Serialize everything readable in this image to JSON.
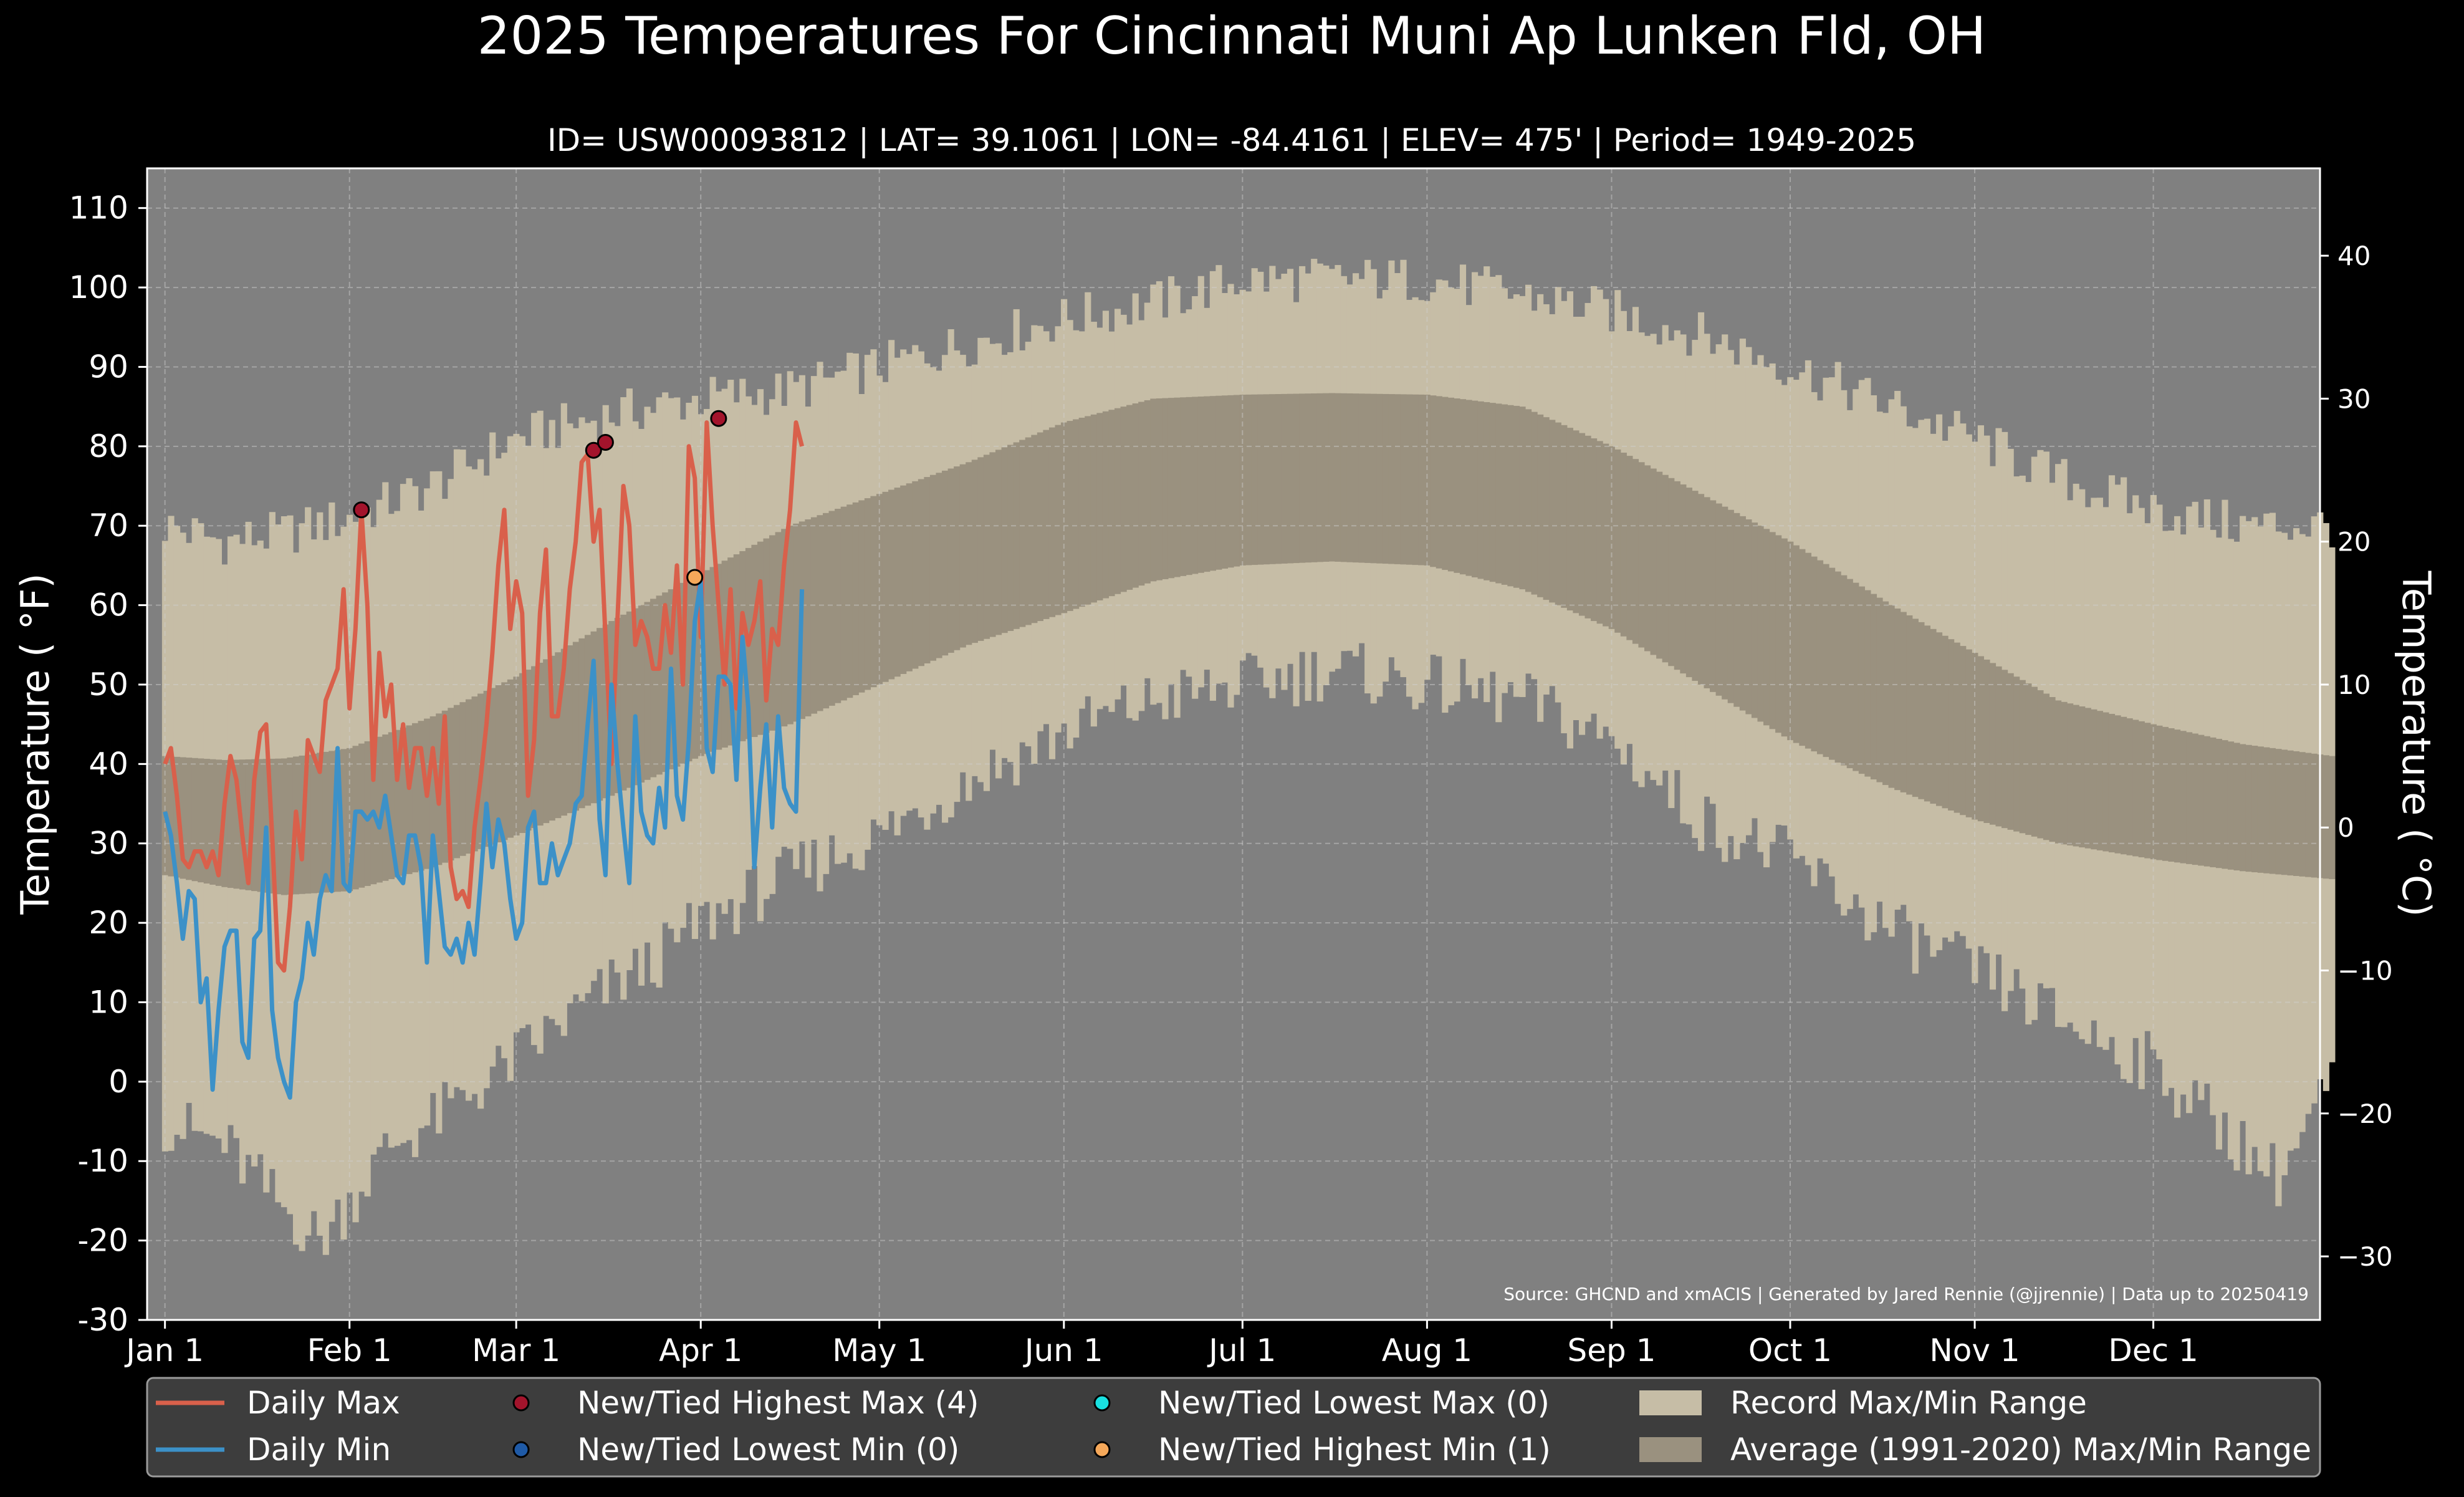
{
  "chart_data": {
    "type": "line",
    "title": "2025 Temperatures For Cincinnati Muni Ap Lunken Fld, OH",
    "subtitle": "ID= USW00093812 | LAT= 39.1061 | LON= -84.4161 | ELEV= 475' | Period= 1949-2025",
    "ylabel": "Temperature ( $^\\circ$F)",
    "ylabel_display": "Temperature ( °F)",
    "y2label_display": "Temperature ( °C)",
    "source": "Source: GHCND and xmACIS | Generated by Jared Rennie (@jjrennie) | Data up to 20250419",
    "ylim": [
      -30,
      115
    ],
    "xlim_days": [
      -3,
      362
    ],
    "y_ticks": [
      -30,
      -20,
      -10,
      0,
      10,
      20,
      30,
      40,
      50,
      60,
      70,
      80,
      90,
      100,
      110
    ],
    "y2_ticks": [
      -30,
      -20,
      -10,
      0,
      10,
      20,
      30,
      40
    ],
    "x_ticks": [
      {
        "day": 0,
        "label": "Jan 1"
      },
      {
        "day": 31,
        "label": "Feb 1"
      },
      {
        "day": 59,
        "label": "Mar 1"
      },
      {
        "day": 90,
        "label": "Apr 1"
      },
      {
        "day": 120,
        "label": "May 1"
      },
      {
        "day": 151,
        "label": "Jun 1"
      },
      {
        "day": 181,
        "label": "Jul 1"
      },
      {
        "day": 212,
        "label": "Aug 1"
      },
      {
        "day": 243,
        "label": "Sep 1"
      },
      {
        "day": 273,
        "label": "Oct 1"
      },
      {
        "day": 304,
        "label": "Nov 1"
      },
      {
        "day": 334,
        "label": "Dec 1"
      }
    ],
    "grid": true,
    "legend_position": "bottom",
    "legend": [
      {
        "label": "Daily Max",
        "kind": "line",
        "color": "#d9604b"
      },
      {
        "label": "Daily Min",
        "kind": "line",
        "color": "#3c91c8"
      },
      {
        "label": "New/Tied Highest Max (4)",
        "kind": "dot",
        "color": "#a3142c"
      },
      {
        "label": "New/Tied Lowest Min (0)",
        "kind": "dot",
        "color": "#1f5aa6"
      },
      {
        "label": "New/Tied Lowest Max (0)",
        "kind": "dot",
        "color": "#19e0e0"
      },
      {
        "label": "New/Tied Highest Min (1)",
        "kind": "dot",
        "color": "#f5a85a"
      },
      {
        "label": "Record Max/Min Range",
        "kind": "patch",
        "color": "#c6bda6"
      },
      {
        "label": "Average (1991-2020) Max/Min Range",
        "kind": "patch",
        "color": "#9a917f"
      }
    ],
    "record_max_control": [
      [
        0,
        70
      ],
      [
        10,
        68
      ],
      [
        20,
        69
      ],
      [
        31,
        71
      ],
      [
        45,
        75
      ],
      [
        59,
        81
      ],
      [
        75,
        84
      ],
      [
        90,
        86
      ],
      [
        105,
        87
      ],
      [
        120,
        90
      ],
      [
        135,
        93
      ],
      [
        151,
        96
      ],
      [
        166,
        98
      ],
      [
        181,
        101
      ],
      [
        196,
        101
      ],
      [
        212,
        101
      ],
      [
        228,
        99
      ],
      [
        243,
        97
      ],
      [
        258,
        94
      ],
      [
        273,
        90
      ],
      [
        290,
        85
      ],
      [
        304,
        81
      ],
      [
        318,
        76
      ],
      [
        334,
        72
      ],
      [
        349,
        70
      ],
      [
        364,
        70
      ]
    ],
    "record_min_control": [
      [
        0,
        -5
      ],
      [
        10,
        -8
      ],
      [
        20,
        -16
      ],
      [
        26,
        -20
      ],
      [
        31,
        -15
      ],
      [
        38,
        -8
      ],
      [
        45,
        -5
      ],
      [
        52,
        -1
      ],
      [
        59,
        3
      ],
      [
        66,
        7
      ],
      [
        75,
        12
      ],
      [
        82,
        15
      ],
      [
        90,
        20
      ],
      [
        105,
        26
      ],
      [
        120,
        31
      ],
      [
        135,
        38
      ],
      [
        151,
        44
      ],
      [
        166,
        48
      ],
      [
        181,
        50
      ],
      [
        196,
        52
      ],
      [
        212,
        50
      ],
      [
        228,
        48
      ],
      [
        243,
        43
      ],
      [
        258,
        33
      ],
      [
        273,
        28
      ],
      [
        290,
        19
      ],
      [
        304,
        14
      ],
      [
        318,
        8
      ],
      [
        334,
        2
      ],
      [
        349,
        -8
      ],
      [
        355,
        -12
      ],
      [
        364,
        0
      ]
    ],
    "avg_max_control": [
      [
        0,
        41
      ],
      [
        10,
        40.5
      ],
      [
        20,
        40.7
      ],
      [
        31,
        42
      ],
      [
        45,
        46
      ],
      [
        59,
        51
      ],
      [
        75,
        58
      ],
      [
        90,
        64
      ],
      [
        105,
        70
      ],
      [
        120,
        74
      ],
      [
        135,
        78
      ],
      [
        151,
        83
      ],
      [
        166,
        86
      ],
      [
        181,
        86.5
      ],
      [
        196,
        86.7
      ],
      [
        212,
        86.5
      ],
      [
        228,
        85
      ],
      [
        243,
        80
      ],
      [
        258,
        74
      ],
      [
        273,
        68
      ],
      [
        290,
        60
      ],
      [
        304,
        54
      ],
      [
        318,
        48
      ],
      [
        334,
        45
      ],
      [
        349,
        42.5
      ],
      [
        364,
        41
      ]
    ],
    "avg_min_control": [
      [
        0,
        26
      ],
      [
        10,
        24.5
      ],
      [
        20,
        23.5
      ],
      [
        31,
        24
      ],
      [
        45,
        27
      ],
      [
        59,
        31
      ],
      [
        75,
        36
      ],
      [
        90,
        41
      ],
      [
        105,
        45
      ],
      [
        120,
        50
      ],
      [
        135,
        55
      ],
      [
        151,
        59
      ],
      [
        166,
        63
      ],
      [
        181,
        65
      ],
      [
        196,
        65.5
      ],
      [
        212,
        65
      ],
      [
        228,
        62
      ],
      [
        243,
        57
      ],
      [
        258,
        50
      ],
      [
        273,
        43
      ],
      [
        290,
        37
      ],
      [
        304,
        33
      ],
      [
        318,
        30
      ],
      [
        334,
        28
      ],
      [
        349,
        26.5
      ],
      [
        364,
        25.5
      ]
    ],
    "series": [
      {
        "name": "Daily Max",
        "color": "#d9604b",
        "day_start": 0,
        "values": [
          40,
          42,
          36,
          28,
          27,
          29,
          29,
          27,
          29,
          26,
          35,
          41,
          38,
          31,
          25,
          38,
          44,
          45,
          31,
          15,
          14,
          22,
          34,
          28,
          43,
          41,
          39,
          48,
          50,
          52,
          62,
          47,
          57,
          72,
          60,
          38,
          54,
          46,
          50,
          38,
          45,
          37,
          42,
          42,
          36,
          42,
          35,
          46,
          27,
          23,
          24,
          22,
          32,
          38,
          45,
          54,
          65,
          72,
          57,
          63,
          59,
          36,
          43,
          59,
          67,
          46,
          46,
          52,
          62,
          68,
          78,
          79,
          68,
          72,
          56,
          40,
          58,
          75,
          70,
          55,
          58,
          56,
          52,
          52,
          60,
          54,
          65,
          50,
          80,
          76,
          56,
          83,
          70,
          60,
          50,
          62,
          47,
          59,
          55,
          58,
          63,
          48,
          57,
          55,
          65,
          72,
          83,
          80
        ]
      },
      {
        "name": "Daily Min",
        "color": "#3c91c8",
        "day_start": 0,
        "values": [
          34,
          31,
          25,
          18,
          24,
          23,
          10,
          13,
          -1,
          9,
          17,
          19,
          19,
          5,
          3,
          18,
          19,
          32,
          9,
          3,
          0,
          -2,
          10,
          13,
          20,
          16,
          23,
          26,
          24,
          42,
          25,
          24,
          34,
          34,
          33,
          34,
          32,
          36,
          31,
          26,
          25,
          31,
          31,
          27,
          15,
          31,
          24,
          17,
          16,
          18,
          15,
          20,
          16,
          25,
          35,
          27,
          33,
          30,
          23,
          18,
          20,
          32,
          34,
          25,
          25,
          30,
          26,
          28,
          30,
          35,
          36,
          45,
          53,
          33,
          26,
          50,
          40,
          32,
          25,
          46,
          34,
          31,
          30,
          37,
          32,
          52,
          36,
          33,
          43,
          58,
          63,
          42,
          39,
          51,
          51,
          50,
          38,
          56,
          47,
          27,
          37,
          45,
          32,
          46,
          37,
          35,
          34,
          62
        ]
      },
      {
        "name": "New/Tied Highest Max (4)",
        "kind": "points",
        "color": "#a3142c",
        "points": [
          [
            33,
            72
          ],
          [
            72,
            79.5
          ],
          [
            74,
            80.5
          ],
          [
            93,
            83.5
          ]
        ]
      },
      {
        "name": "New/Tied Highest Min (1)",
        "kind": "points",
        "color": "#f5a85a",
        "points": [
          [
            89,
            63.5
          ]
        ]
      }
    ]
  }
}
